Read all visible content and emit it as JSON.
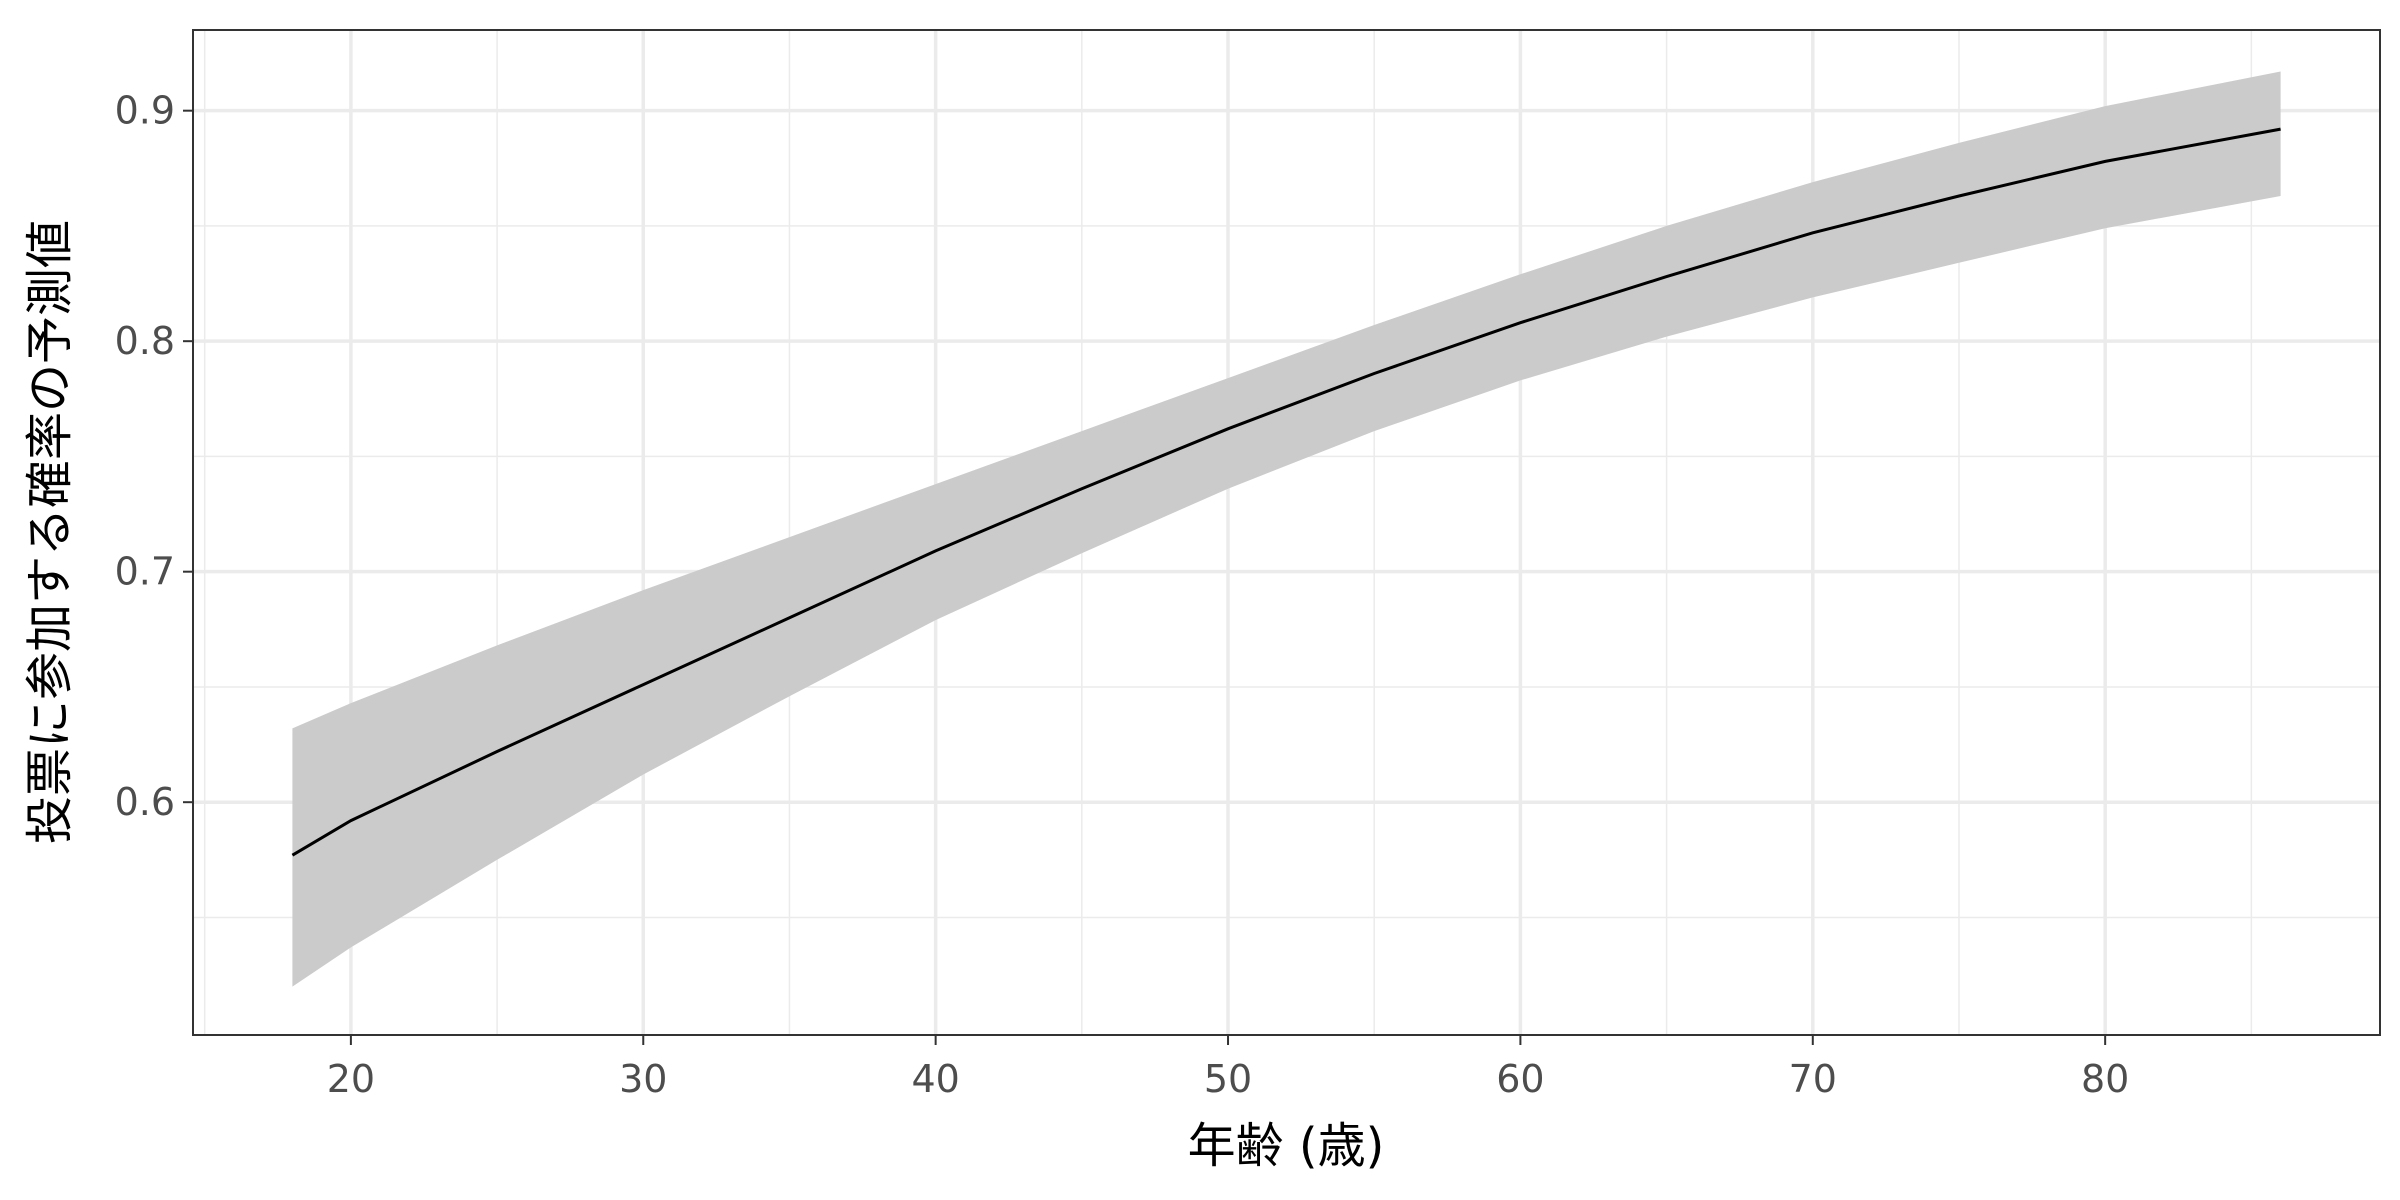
{
  "chart_data": {
    "type": "line",
    "title": "",
    "xlabel": "年齢 (歳)",
    "ylabel": "投票に参加する確率の予測値",
    "xlim": [
      14.6,
      89.4
    ],
    "ylim": [
      0.499,
      0.935
    ],
    "x_ticks": [
      20,
      30,
      40,
      50,
      60,
      70,
      80
    ],
    "x_tick_labels": [
      "20",
      "30",
      "40",
      "50",
      "60",
      "70",
      "80"
    ],
    "y_ticks": [
      0.6,
      0.7,
      0.8,
      0.9
    ],
    "y_tick_labels": [
      "0.6",
      "0.7",
      "0.8",
      "0.9"
    ],
    "x_minor_ticks": [
      15,
      25,
      35,
      45,
      55,
      65,
      75,
      85
    ],
    "y_minor_ticks": [
      0.55,
      0.65,
      0.75,
      0.85
    ],
    "grid": true,
    "colors": {
      "line": "#000000",
      "ribbon": "#cbcbcb",
      "grid": "#ebebeb",
      "panel_border": "#333333"
    },
    "series": [
      {
        "x": [
          18,
          20,
          25,
          30,
          35,
          40,
          45,
          50,
          55,
          60,
          65,
          70,
          75,
          80,
          86
        ],
        "y": [
          0.577,
          0.592,
          0.622,
          0.651,
          0.68,
          0.709,
          0.736,
          0.762,
          0.786,
          0.808,
          0.828,
          0.847,
          0.863,
          0.878,
          0.892
        ],
        "lower": [
          0.52,
          0.537,
          0.575,
          0.612,
          0.646,
          0.679,
          0.708,
          0.736,
          0.761,
          0.783,
          0.802,
          0.819,
          0.834,
          0.849,
          0.863
        ],
        "upper": [
          0.632,
          0.643,
          0.668,
          0.692,
          0.715,
          0.738,
          0.761,
          0.784,
          0.807,
          0.829,
          0.85,
          0.869,
          0.886,
          0.902,
          0.917
        ]
      }
    ]
  }
}
